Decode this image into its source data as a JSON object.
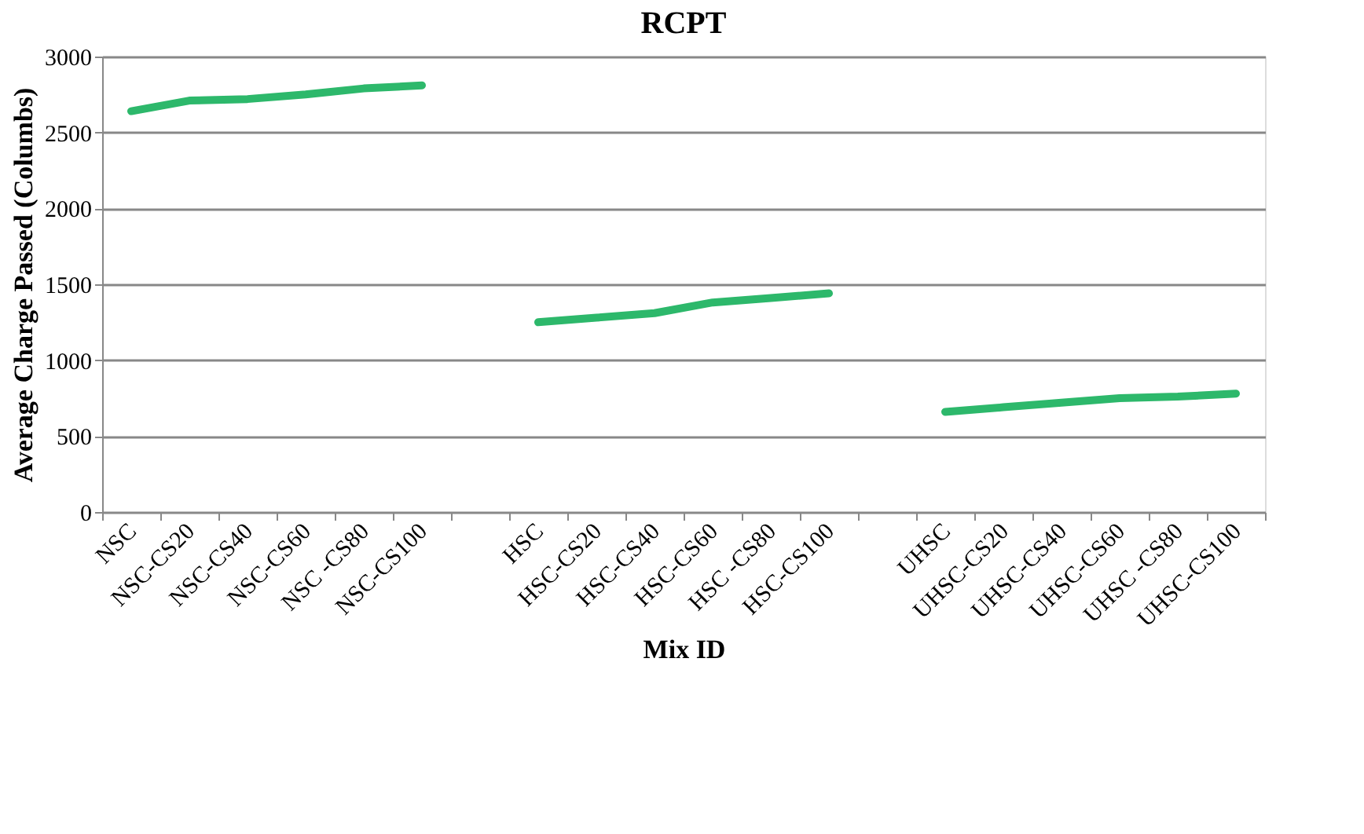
{
  "chart_data": {
    "type": "line",
    "title": "RCPT",
    "xlabel": "Mix ID",
    "ylabel": "Average Charge Passed (Columbs)",
    "categories": [
      "NSC",
      "NSC-CS20",
      "NSC-CS40",
      "NSC-CS60",
      "NSC -CS80",
      "NSC-CS100",
      null,
      "HSC",
      "HSC-CS20",
      "HSC-CS40",
      "HSC-CS60",
      "HSC -CS80",
      "HSC-CS100",
      null,
      "UHSC",
      "UHSC-CS20",
      "UHSC-CS40",
      "UHSC-CS60",
      "UHSC -CS80",
      "UHSC-CS100"
    ],
    "series": [
      {
        "color": "#2db86b",
        "values": [
          2640,
          2710,
          2720,
          2750,
          2790,
          2810,
          null,
          1250,
          1280,
          1310,
          1380,
          1410,
          1440,
          null,
          660,
          690,
          720,
          750,
          760,
          780
        ]
      }
    ],
    "ylim": [
      0,
      3000
    ],
    "yticks": [
      0,
      500,
      1000,
      1500,
      2000,
      2500,
      3000
    ],
    "grid": "y",
    "legend": false,
    "marker": "none",
    "line_style": "solid"
  }
}
